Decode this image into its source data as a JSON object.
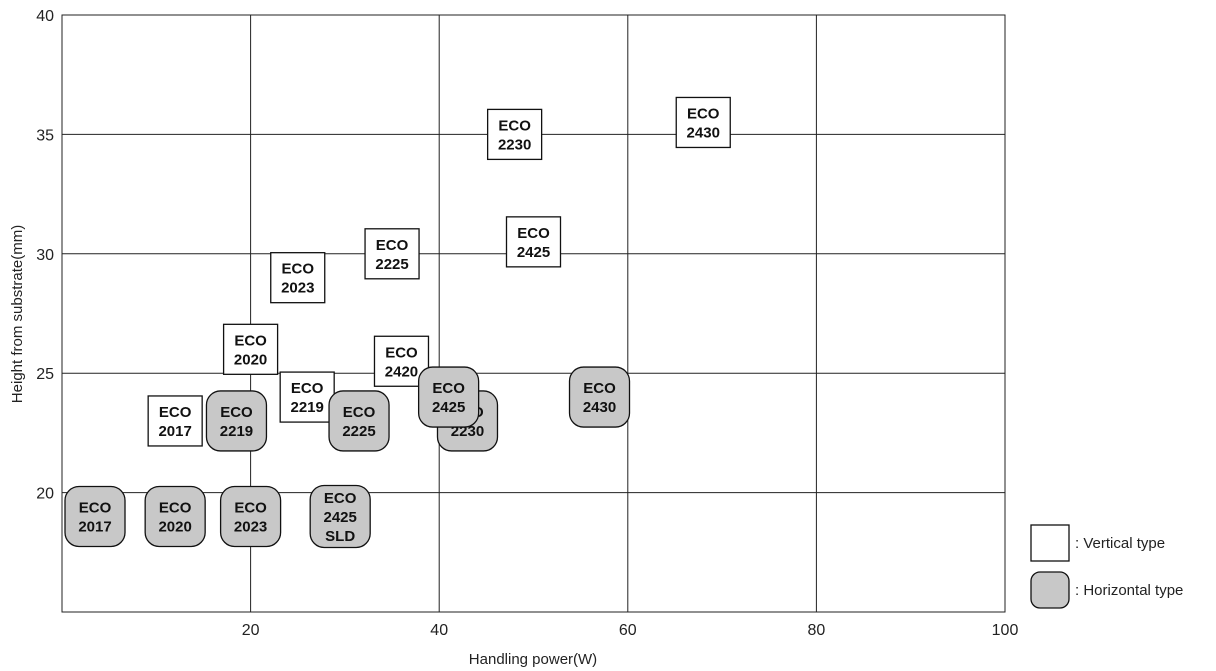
{
  "chart_data": {
    "type": "scatter",
    "title": "",
    "xlabel": "Handling power(W)",
    "ylabel": "Height from substrate(mm)",
    "xlim": [
      0,
      100
    ],
    "ylim": [
      15,
      40
    ],
    "xticks": [
      "20",
      "40",
      "60",
      "80",
      "100"
    ],
    "yticks": [
      "20",
      "25",
      "30",
      "35",
      "40"
    ],
    "grid": true,
    "legend_position": "bottom-right",
    "series": [
      {
        "name": ": Vertical type",
        "marker": "square-outline",
        "fill": "#ffffff",
        "points": [
          {
            "label": [
              "ECO",
              "2017"
            ],
            "x": 12,
            "y": 23
          },
          {
            "label": [
              "ECO",
              "2020"
            ],
            "x": 20,
            "y": 26
          },
          {
            "label": [
              "ECO",
              "2023"
            ],
            "x": 25,
            "y": 29
          },
          {
            "label": [
              "ECO",
              "2219"
            ],
            "x": 26,
            "y": 24
          },
          {
            "label": [
              "ECO",
              "2225"
            ],
            "x": 35,
            "y": 30
          },
          {
            "label": [
              "ECO",
              "2420"
            ],
            "x": 36,
            "y": 25.5
          },
          {
            "label": [
              "ECO",
              "2230"
            ],
            "x": 48,
            "y": 35
          },
          {
            "label": [
              "ECO",
              "2425"
            ],
            "x": 50,
            "y": 30.5
          },
          {
            "label": [
              "ECO",
              "2430"
            ],
            "x": 68,
            "y": 35.5
          }
        ]
      },
      {
        "name": ": Horizontal type",
        "marker": "rounded-square-filled",
        "fill": "#c8c8c8",
        "points": [
          {
            "label": [
              "ECO",
              "2017"
            ],
            "x": 3.5,
            "y": 19
          },
          {
            "label": [
              "ECO",
              "2020"
            ],
            "x": 12,
            "y": 19
          },
          {
            "label": [
              "ECO",
              "2023"
            ],
            "x": 20,
            "y": 19
          },
          {
            "label": [
              "ECO",
              "2219"
            ],
            "x": 18.5,
            "y": 23
          },
          {
            "label": [
              "ECO",
              "2225"
            ],
            "x": 31.5,
            "y": 23
          },
          {
            "label": [
              "ECO",
              "2425",
              "SLD"
            ],
            "x": 29.5,
            "y": 19
          },
          {
            "label": [
              "ECO",
              "2230"
            ],
            "x": 43,
            "y": 23
          },
          {
            "label": [
              "ECO",
              "2425"
            ],
            "x": 41,
            "y": 24
          },
          {
            "label": [
              "ECO",
              "2430"
            ],
            "x": 57,
            "y": 24
          }
        ]
      }
    ]
  },
  "colors": {
    "grid": "#222222",
    "outline": "#111111",
    "horizontal_fill": "#c8c8c8",
    "vertical_fill": "#ffffff"
  }
}
